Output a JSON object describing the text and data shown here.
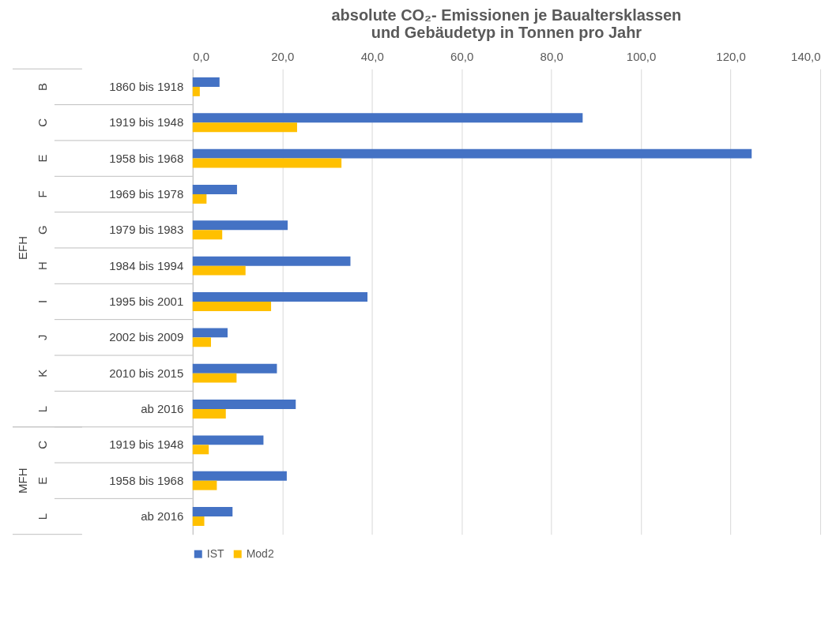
{
  "chart_data": {
    "type": "bar",
    "orientation": "horizontal",
    "title": "absolute CO₂- Emissionen je Baualtersklassen und Gebäudetyp in Tonnen pro Jahr",
    "categories": [
      "1860 bis 1918",
      "1919 bis 1948",
      "1958 bis 1968",
      "1969 bis 1978",
      "1979 bis 1983",
      "1984 bis 1994",
      "1995 bis 2001",
      "2002 bis 2009",
      "2010 bis 2015",
      "ab 2016",
      "1919 bis 1948",
      "1958 bis 1968",
      "ab 2016"
    ],
    "annotations": [
      "B",
      "C",
      "E",
      "F",
      "G",
      "H",
      "I",
      "J",
      "K",
      "L",
      "C",
      "E",
      "L",
      "EFH",
      "MFH"
    ],
    "series": [
      {
        "name": "IST",
        "color": "#4472c4",
        "values": [
          6.0,
          87.0,
          124.7,
          9.9,
          21.2,
          35.2,
          39.0,
          7.8,
          18.8,
          23.0,
          15.8,
          21.0,
          8.9
        ]
      },
      {
        "name": "Mod2",
        "color": "#ffc000",
        "values": [
          1.6,
          23.3,
          33.2,
          3.1,
          6.6,
          11.8,
          17.5,
          4.1,
          9.8,
          7.4,
          3.6,
          5.4,
          2.6
        ]
      }
    ],
    "xlim": [
      0,
      140
    ],
    "xticks": [
      {
        "value": 0,
        "label": "0,0"
      },
      {
        "value": 20,
        "label": "20,0"
      },
      {
        "value": 40,
        "label": "40,0"
      },
      {
        "value": 60,
        "label": "60,0"
      },
      {
        "value": 80,
        "label": "80,0"
      },
      {
        "value": 100,
        "label": "100,0"
      },
      {
        "value": 120,
        "label": "120,0"
      },
      {
        "value": 140,
        "label": "140,0"
      }
    ],
    "grid": "x",
    "legend": "bottom"
  }
}
